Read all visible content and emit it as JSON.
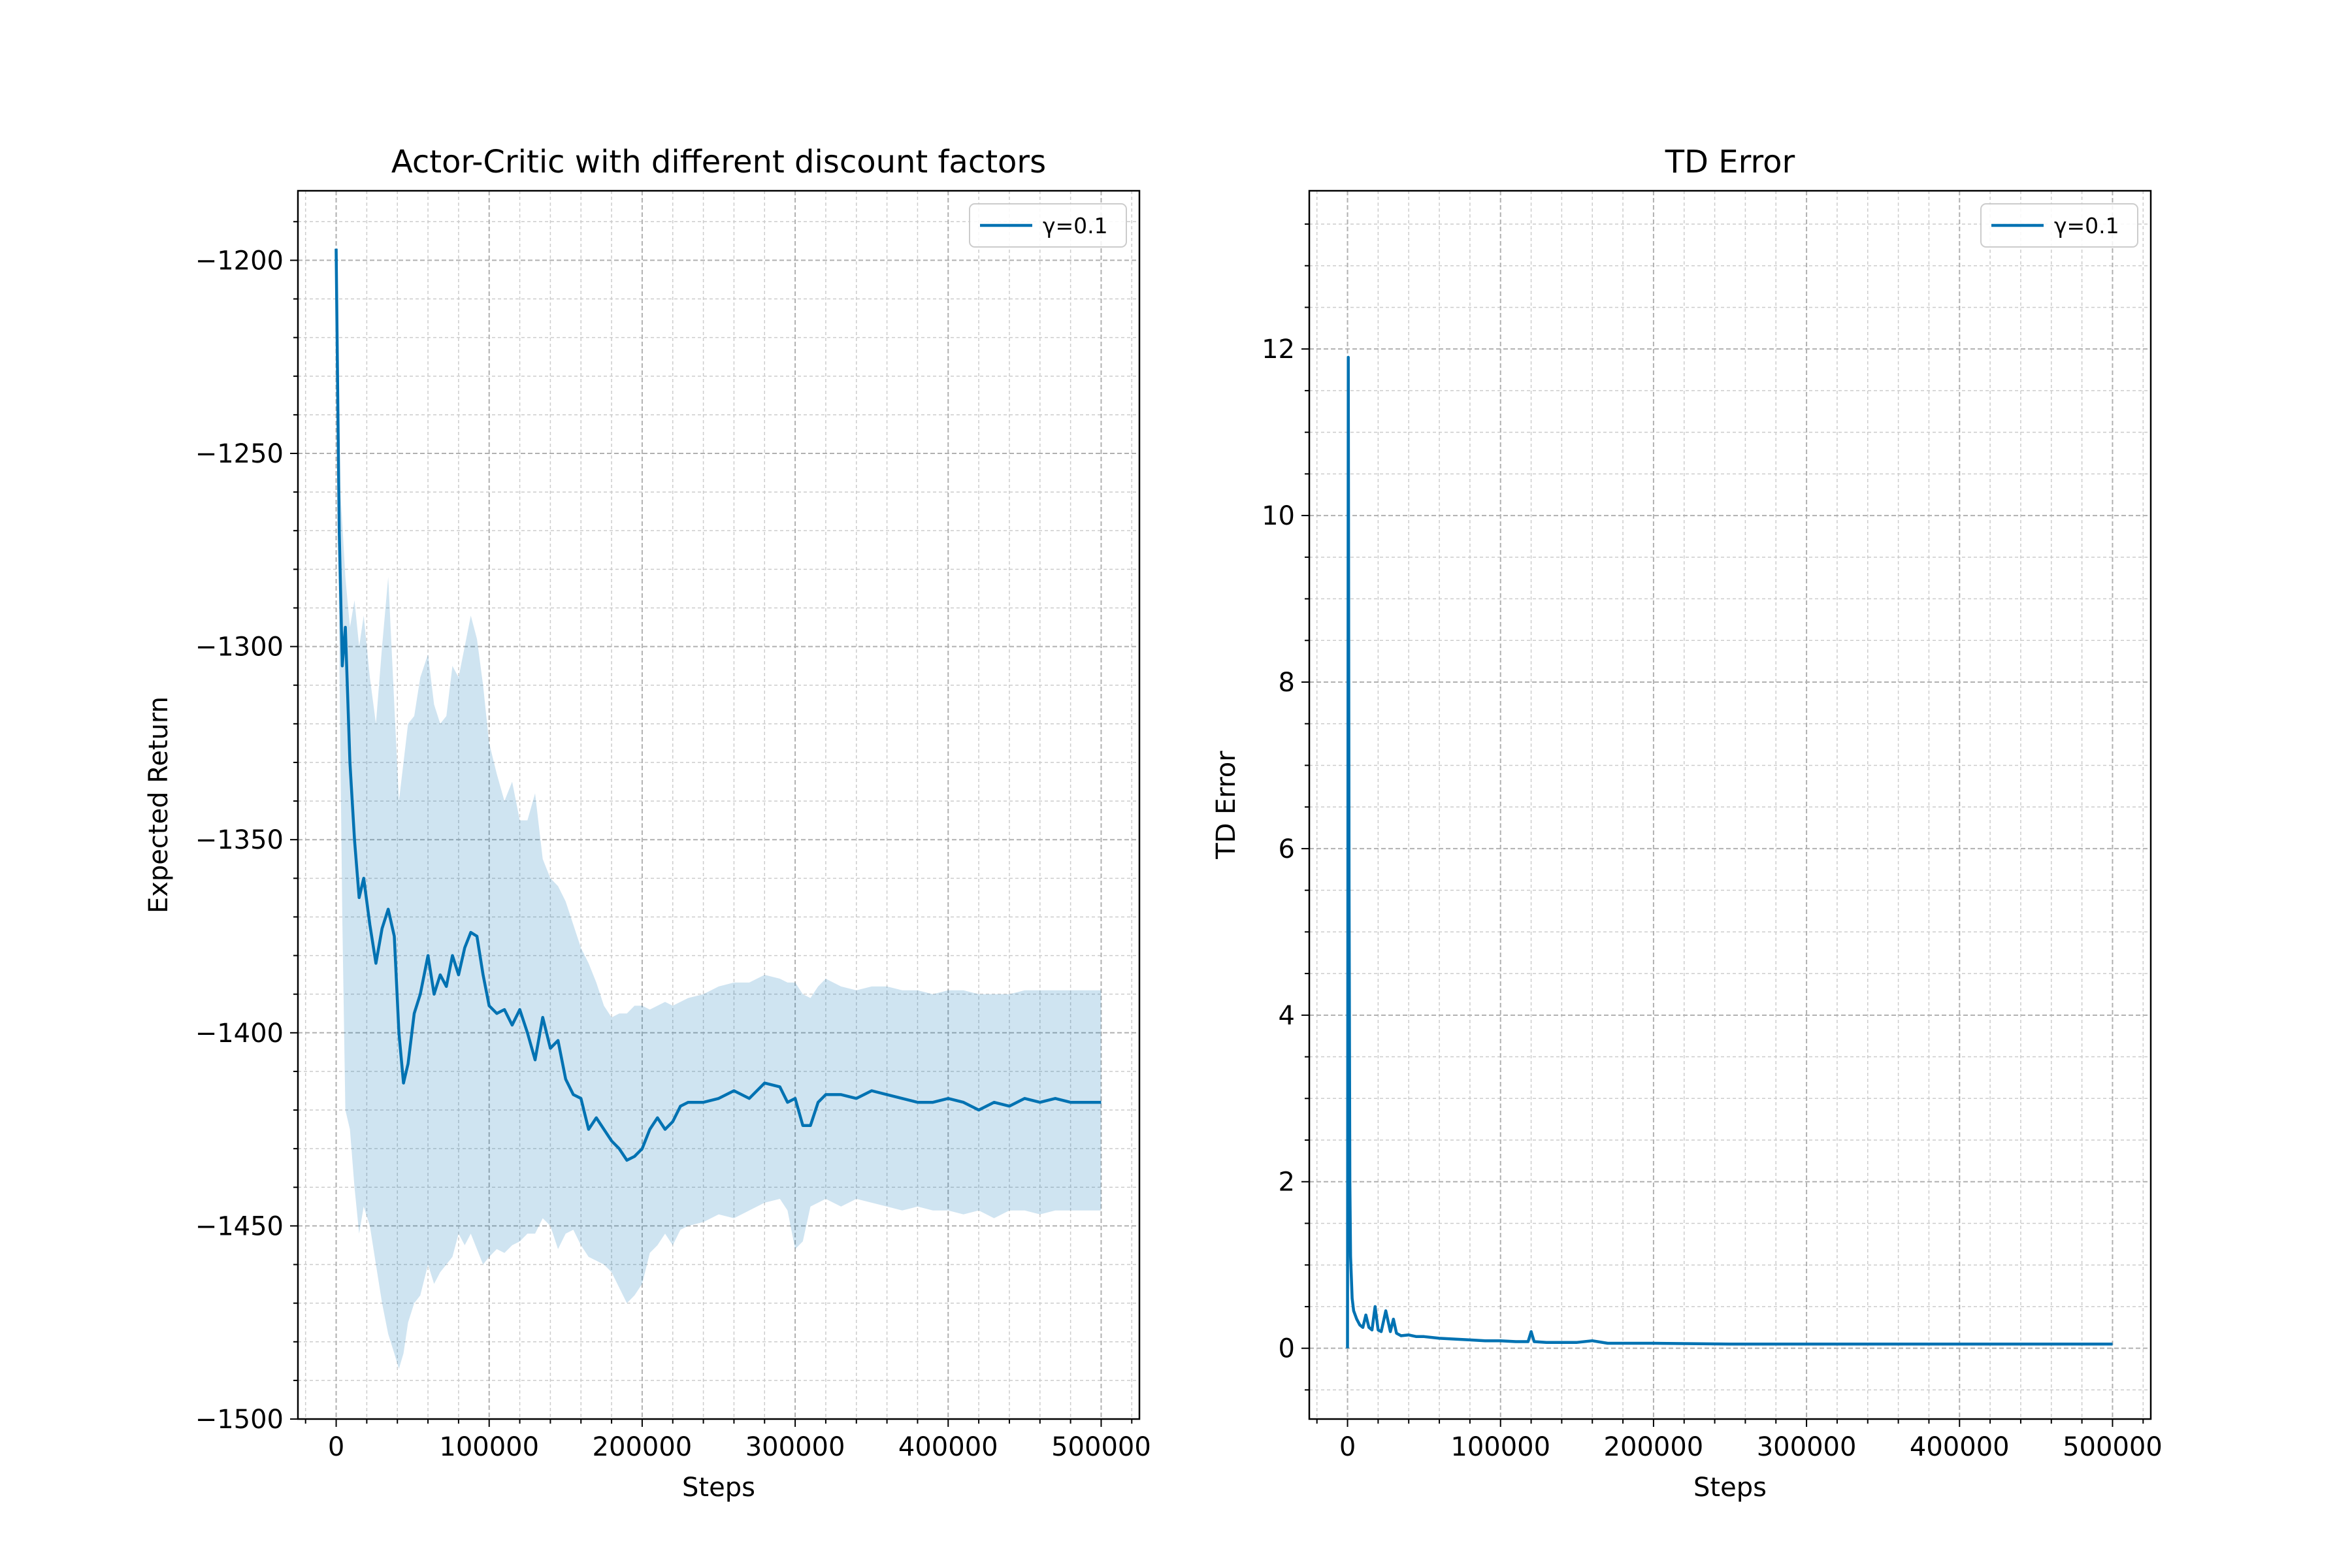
{
  "chart_data": [
    {
      "type": "line",
      "title": "Actor-Critic with different discount factors",
      "xlabel": "Steps",
      "ylabel": "Expected Return",
      "xlim": [
        -25000,
        525000
      ],
      "ylim": [
        -1500,
        -1182
      ],
      "xticks": [
        0,
        100000,
        200000,
        300000,
        400000,
        500000
      ],
      "xtick_labels": [
        "0",
        "100000",
        "200000",
        "300000",
        "400000",
        "500000"
      ],
      "yticks": [
        -1500,
        -1450,
        -1400,
        -1350,
        -1300,
        -1250,
        -1200
      ],
      "ytick_labels": [
        "−1500",
        "−1450",
        "−1400",
        "−1350",
        "−1300",
        "−1250",
        "−1200"
      ],
      "grid": true,
      "legend_loc": "upper right",
      "series": [
        {
          "name": "γ=0.1",
          "color": "#0072b2",
          "band_color": "#0072b2",
          "x": [
            0,
            2000,
            4000,
            6000,
            9000,
            12000,
            15000,
            18000,
            22000,
            26000,
            30000,
            34000,
            38000,
            41000,
            44000,
            47000,
            51000,
            55000,
            60000,
            64000,
            68000,
            72000,
            76000,
            80000,
            84000,
            88000,
            92000,
            96000,
            100000,
            105000,
            110000,
            115000,
            120000,
            125000,
            130000,
            135000,
            140000,
            145000,
            150000,
            155000,
            160000,
            165000,
            170000,
            175000,
            180000,
            185000,
            190000,
            195000,
            200000,
            205000,
            210000,
            215000,
            220000,
            225000,
            230000,
            240000,
            250000,
            260000,
            270000,
            280000,
            290000,
            295000,
            300000,
            305000,
            310000,
            315000,
            320000,
            330000,
            340000,
            350000,
            360000,
            370000,
            380000,
            390000,
            400000,
            410000,
            420000,
            430000,
            440000,
            450000,
            460000,
            470000,
            480000,
            490000,
            500000
          ],
          "y": [
            -1197,
            -1270,
            -1305,
            -1295,
            -1330,
            -1350,
            -1365,
            -1360,
            -1372,
            -1382,
            -1373,
            -1368,
            -1375,
            -1400,
            -1413,
            -1408,
            -1395,
            -1390,
            -1380,
            -1390,
            -1385,
            -1388,
            -1380,
            -1385,
            -1378,
            -1374,
            -1375,
            -1385,
            -1393,
            -1395,
            -1394,
            -1398,
            -1394,
            -1400,
            -1407,
            -1396,
            -1404,
            -1402,
            -1412,
            -1416,
            -1417,
            -1425,
            -1422,
            -1425,
            -1428,
            -1430,
            -1433,
            -1432,
            -1430,
            -1425,
            -1422,
            -1425,
            -1423,
            -1419,
            -1418,
            -1418,
            -1417,
            -1415,
            -1417,
            -1413,
            -1414,
            -1418,
            -1417,
            -1424,
            -1424,
            -1418,
            -1416,
            -1416,
            -1417,
            -1415,
            -1416,
            -1417,
            -1418,
            -1418,
            -1417,
            -1418,
            -1420,
            -1418,
            -1419,
            -1417,
            -1418,
            -1417,
            -1418,
            -1418,
            -1418
          ],
          "upper": [
            -1197,
            -1255,
            -1268,
            -1282,
            -1295,
            -1288,
            -1300,
            -1292,
            -1308,
            -1320,
            -1300,
            -1282,
            -1315,
            -1340,
            -1330,
            -1320,
            -1318,
            -1308,
            -1302,
            -1315,
            -1320,
            -1318,
            -1305,
            -1308,
            -1300,
            -1292,
            -1298,
            -1310,
            -1325,
            -1333,
            -1340,
            -1335,
            -1345,
            -1345,
            -1338,
            -1355,
            -1360,
            -1362,
            -1366,
            -1372,
            -1378,
            -1382,
            -1387,
            -1393,
            -1396,
            -1395,
            -1395,
            -1393,
            -1393,
            -1394,
            -1393,
            -1392,
            -1393,
            -1392,
            -1391,
            -1390,
            -1388,
            -1387,
            -1387,
            -1385,
            -1386,
            -1387,
            -1387,
            -1390,
            -1391,
            -1388,
            -1386,
            -1388,
            -1389,
            -1388,
            -1388,
            -1389,
            -1389,
            -1390,
            -1389,
            -1389,
            -1390,
            -1390,
            -1390,
            -1389,
            -1389,
            -1389,
            -1389,
            -1389,
            -1389
          ],
          "lower": [
            -1197,
            -1300,
            -1370,
            -1420,
            -1425,
            -1440,
            -1452,
            -1445,
            -1450,
            -1460,
            -1470,
            -1478,
            -1483,
            -1487,
            -1483,
            -1475,
            -1470,
            -1468,
            -1460,
            -1465,
            -1462,
            -1460,
            -1458,
            -1452,
            -1455,
            -1452,
            -1456,
            -1460,
            -1458,
            -1456,
            -1457,
            -1455,
            -1454,
            -1452,
            -1452,
            -1448,
            -1450,
            -1456,
            -1452,
            -1451,
            -1455,
            -1458,
            -1459,
            -1460,
            -1462,
            -1466,
            -1470,
            -1468,
            -1465,
            -1457,
            -1455,
            -1452,
            -1455,
            -1451,
            -1450,
            -1449,
            -1447,
            -1448,
            -1446,
            -1444,
            -1443,
            -1446,
            -1456,
            -1454,
            -1445,
            -1444,
            -1443,
            -1445,
            -1443,
            -1444,
            -1445,
            -1446,
            -1445,
            -1446,
            -1446,
            -1447,
            -1446,
            -1448,
            -1446,
            -1446,
            -1447,
            -1446,
            -1446,
            -1446,
            -1446
          ]
        }
      ]
    },
    {
      "type": "line",
      "title": "TD Error",
      "xlabel": "Steps",
      "ylabel": "TD Error",
      "xlim": [
        -25000,
        525000
      ],
      "ylim": [
        -0.85,
        13.9
      ],
      "xticks": [
        0,
        100000,
        200000,
        300000,
        400000,
        500000
      ],
      "xtick_labels": [
        "0",
        "100000",
        "200000",
        "300000",
        "400000",
        "500000"
      ],
      "yticks": [
        0,
        2,
        4,
        6,
        8,
        10,
        12
      ],
      "ytick_labels": [
        "0",
        "2",
        "4",
        "6",
        "8",
        "10",
        "12"
      ],
      "grid": true,
      "legend_loc": "upper right",
      "series": [
        {
          "name": "γ=0.1",
          "color": "#0072b2",
          "x": [
            0,
            500,
            1000,
            1500,
            2000,
            3000,
            4000,
            6000,
            8000,
            10000,
            12000,
            14000,
            16000,
            18000,
            20000,
            22000,
            25000,
            28000,
            30000,
            32000,
            35000,
            40000,
            45000,
            50000,
            60000,
            70000,
            80000,
            90000,
            100000,
            110000,
            118000,
            120000,
            122000,
            130000,
            140000,
            150000,
            160000,
            170000,
            180000,
            200000,
            250000,
            300000,
            350000,
            400000,
            450000,
            500000
          ],
          "y": [
            0,
            11.9,
            5.5,
            2.0,
            1.1,
            0.6,
            0.45,
            0.35,
            0.28,
            0.25,
            0.4,
            0.25,
            0.22,
            0.5,
            0.22,
            0.2,
            0.45,
            0.2,
            0.35,
            0.18,
            0.15,
            0.16,
            0.14,
            0.14,
            0.12,
            0.11,
            0.1,
            0.09,
            0.09,
            0.08,
            0.08,
            0.2,
            0.08,
            0.07,
            0.07,
            0.07,
            0.09,
            0.06,
            0.06,
            0.06,
            0.05,
            0.05,
            0.05,
            0.05,
            0.05,
            0.05
          ]
        }
      ]
    }
  ]
}
